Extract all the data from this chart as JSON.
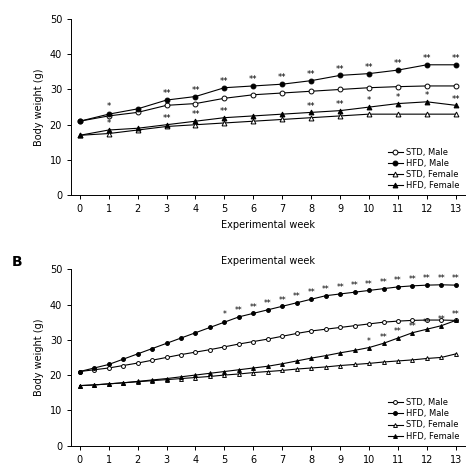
{
  "panel_A": {
    "weeks": [
      0,
      1,
      2,
      3,
      4,
      5,
      6,
      7,
      8,
      9,
      10,
      11,
      12,
      13
    ],
    "STD_Male": [
      21.0,
      22.5,
      23.5,
      25.5,
      26.0,
      27.5,
      28.5,
      29.0,
      29.5,
      30.0,
      30.5,
      30.8,
      31.0,
      31.0
    ],
    "HFD_Male": [
      21.0,
      23.0,
      24.5,
      27.0,
      28.0,
      30.5,
      31.0,
      31.5,
      32.5,
      34.0,
      34.5,
      35.5,
      37.0,
      37.0
    ],
    "STD_Female": [
      17.0,
      17.5,
      18.5,
      19.5,
      20.0,
      20.5,
      21.0,
      21.5,
      22.0,
      22.5,
      23.0,
      23.0,
      23.0,
      23.0
    ],
    "HFD_Female": [
      17.0,
      18.5,
      19.0,
      20.0,
      21.0,
      22.0,
      22.5,
      23.0,
      23.5,
      24.0,
      25.0,
      26.0,
      26.5,
      25.5
    ],
    "sig_HFD_Male_star1": [
      1
    ],
    "sig_HFD_Male_star2": [
      3,
      4,
      5,
      6,
      7,
      8,
      9,
      10,
      11,
      12,
      13
    ],
    "sig_HFD_Female_star1": [
      1,
      10,
      11,
      12
    ],
    "sig_HFD_Female_star2": [
      3,
      4,
      5,
      8,
      9,
      13
    ]
  },
  "panel_B": {
    "weeks": [
      0,
      0.5,
      1,
      1.5,
      2,
      2.5,
      3,
      3.5,
      4,
      4.5,
      5,
      5.5,
      6,
      6.5,
      7,
      7.5,
      8,
      8.5,
      9,
      9.5,
      10,
      10.5,
      11,
      11.5,
      12,
      12.5,
      13
    ],
    "xtick_labels": [
      "0",
      "1",
      "2",
      "3",
      "4",
      "5",
      "6",
      "7",
      "8",
      "9",
      "10",
      "11",
      "12",
      "13"
    ],
    "xtick_positions": [
      0,
      1,
      2,
      3,
      4,
      5,
      6,
      7,
      8,
      9,
      10,
      11,
      12,
      13
    ],
    "STD_Male": [
      21.0,
      21.5,
      22.0,
      22.7,
      23.4,
      24.2,
      25.0,
      25.8,
      26.5,
      27.2,
      28.0,
      28.8,
      29.5,
      30.2,
      31.0,
      31.8,
      32.5,
      33.0,
      33.5,
      34.0,
      34.5,
      35.0,
      35.3,
      35.5,
      35.6,
      35.6,
      35.5
    ],
    "HFD_Male": [
      21.0,
      22.0,
      23.0,
      24.5,
      26.0,
      27.5,
      29.0,
      30.5,
      32.0,
      33.5,
      35.0,
      36.5,
      37.5,
      38.5,
      39.5,
      40.5,
      41.5,
      42.5,
      43.0,
      43.5,
      44.0,
      44.5,
      45.0,
      45.3,
      45.5,
      45.6,
      45.5
    ],
    "STD_Female": [
      17.0,
      17.2,
      17.5,
      17.8,
      18.1,
      18.4,
      18.7,
      19.0,
      19.3,
      19.6,
      20.0,
      20.3,
      20.7,
      21.0,
      21.3,
      21.7,
      22.0,
      22.3,
      22.7,
      23.0,
      23.3,
      23.7,
      24.0,
      24.3,
      24.7,
      25.0,
      26.0
    ],
    "HFD_Female": [
      17.0,
      17.2,
      17.5,
      17.8,
      18.2,
      18.6,
      19.0,
      19.5,
      20.0,
      20.5,
      21.0,
      21.5,
      22.0,
      22.5,
      23.2,
      24.0,
      24.8,
      25.5,
      26.3,
      27.0,
      27.8,
      29.0,
      30.5,
      32.0,
      33.0,
      34.0,
      35.5
    ],
    "sig_HFD_Male_star1": [
      5
    ],
    "sig_HFD_Male_star2": [
      5.5,
      6,
      6.5,
      7,
      7.5,
      8,
      8.5,
      9,
      9.5,
      10,
      10.5,
      11,
      11.5,
      12,
      12.5,
      13
    ],
    "sig_HFD_Female_star1": [
      10
    ],
    "sig_HFD_Female_star2": [
      10.5,
      11,
      11.5,
      12,
      12.5,
      13
    ]
  },
  "ylabel": "Body weight (g)",
  "xlabel": "Experimental week",
  "ylim": [
    0,
    50
  ],
  "yticks": [
    0,
    10,
    20,
    30,
    40,
    50
  ],
  "legend_labels": [
    "STD, Male",
    "HFD, Male",
    "STD, Female",
    "HFD, Female"
  ]
}
